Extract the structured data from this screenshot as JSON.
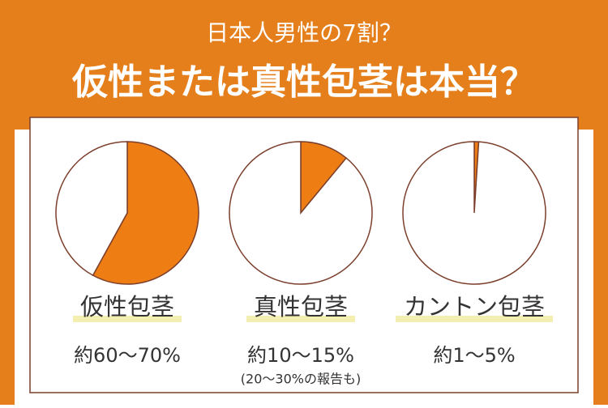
{
  "header": {
    "subtitle": "日本人男性の7割？",
    "title": "仮性または真性包茎は本当？"
  },
  "chart_data": [
    {
      "type": "pie",
      "title": "仮性包茎",
      "values": [
        58,
        42
      ],
      "colors": [
        "#ee7d14",
        "#ffffff"
      ],
      "label": "約60～70%"
    },
    {
      "type": "pie",
      "title": "真性包茎",
      "values": [
        11,
        89
      ],
      "colors": [
        "#ee7d14",
        "#ffffff"
      ],
      "label": "約10～15%",
      "note": "(20～30%の報告も)"
    },
    {
      "type": "pie",
      "title": "カントン包茎",
      "values": [
        1,
        99
      ],
      "colors": [
        "#ee7d14",
        "#ffffff"
      ],
      "label": "約1～5%"
    }
  ]
}
